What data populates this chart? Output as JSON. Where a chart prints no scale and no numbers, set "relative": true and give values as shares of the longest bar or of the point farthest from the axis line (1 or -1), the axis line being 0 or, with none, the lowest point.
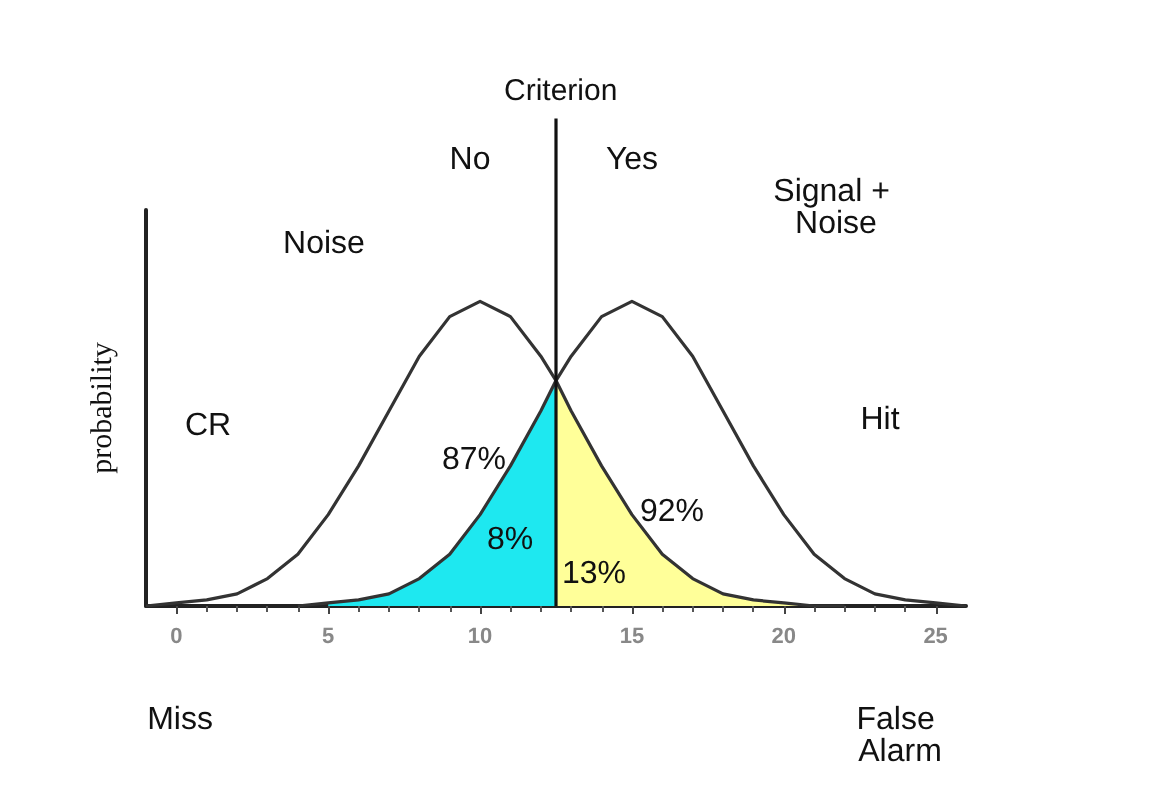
{
  "chart_data": {
    "type": "line",
    "ylabel": "probability",
    "relative": true,
    "xlim": [
      -1,
      26
    ],
    "xticks": [
      0,
      5,
      10,
      15,
      20,
      25
    ],
    "marker": "none",
    "line_style": "solid",
    "grid": false,
    "series": [
      {
        "type": "area",
        "color": "#1ee8f0",
        "x": [
          5,
          6,
          7,
          8,
          9,
          10,
          11,
          12,
          12.5
        ],
        "values": [
          0.01,
          0.02,
          0.04,
          0.09,
          0.17,
          0.3,
          0.46,
          0.64,
          0.74
        ]
      },
      {
        "type": "area",
        "color": "#ffff99",
        "x": [
          12.5,
          13,
          14,
          15,
          16,
          17,
          18,
          19,
          20,
          21
        ],
        "values": [
          0.74,
          0.64,
          0.46,
          0.3,
          0.17,
          0.09,
          0.04,
          0.02,
          0.01,
          0
        ]
      },
      {
        "color": "#333333",
        "x": [
          -1,
          0,
          1,
          2,
          3,
          4,
          5,
          6,
          7,
          8,
          9,
          10,
          11,
          12,
          12.5,
          13,
          14,
          15,
          16,
          17,
          18,
          19,
          20,
          21,
          22
        ],
        "values": [
          0,
          0.01,
          0.02,
          0.04,
          0.09,
          0.17,
          0.3,
          0.46,
          0.64,
          0.82,
          0.95,
          1,
          0.95,
          0.82,
          0.74,
          0.64,
          0.46,
          0.3,
          0.17,
          0.09,
          0.04,
          0.02,
          0.01,
          0,
          0
        ]
      },
      {
        "color": "#333333",
        "x": [
          4,
          5,
          6,
          7,
          8,
          9,
          10,
          11,
          12,
          12.5,
          13,
          14,
          15,
          16,
          17,
          18,
          19,
          20,
          21,
          22,
          23,
          24,
          25,
          26
        ],
        "values": [
          0,
          0.01,
          0.02,
          0.04,
          0.09,
          0.17,
          0.3,
          0.46,
          0.64,
          0.74,
          0.82,
          0.95,
          1,
          0.95,
          0.82,
          0.64,
          0.46,
          0.3,
          0.17,
          0.09,
          0.04,
          0.02,
          0.01,
          0
        ]
      }
    ],
    "ref_lines": [
      {
        "axis": "x",
        "value": 12.5,
        "label": "Criterion",
        "color": "#111111"
      }
    ],
    "annotations": [
      "No",
      "Yes",
      "Noise",
      "Signal + Noise",
      "CR",
      "Hit",
      "87%",
      "8%",
      "92%",
      "13%",
      "Miss",
      "False Alarm"
    ]
  }
}
